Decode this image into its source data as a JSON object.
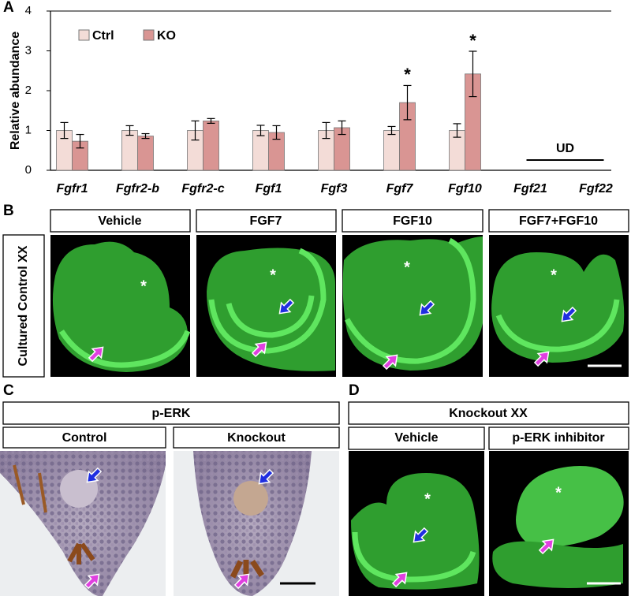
{
  "chart_data": {
    "type": "bar",
    "panel_label": "A",
    "ylabel": "Relative abundance",
    "categories": [
      "Fgfr1",
      "Fgfr2-b",
      "Fgfr2-c",
      "Fgf1",
      "Fgf3",
      "Fgf7",
      "Fgf10",
      "Fgf21",
      "Fgf22"
    ],
    "series": [
      {
        "name": "Ctrl",
        "color": "#f3dcd7",
        "values": [
          1,
          1,
          1,
          1,
          1,
          1,
          1,
          null,
          null
        ],
        "errors": [
          0.2,
          0.12,
          0.24,
          0.13,
          0.2,
          0.1,
          0.17,
          null,
          null
        ]
      },
      {
        "name": "KO",
        "color": "#d99593",
        "values": [
          0.73,
          0.86,
          1.24,
          0.95,
          1.07,
          1.7,
          2.42,
          null,
          null
        ],
        "errors": [
          0.17,
          0.06,
          0.06,
          0.17,
          0.17,
          0.43,
          0.57,
          null,
          null
        ]
      }
    ],
    "ylim": [
      0,
      4
    ],
    "yticks": [
      0,
      1,
      2,
      3,
      4
    ],
    "annotations": [
      {
        "text": "*",
        "category": "Fgf7"
      },
      {
        "text": "*",
        "category": "Fgf10"
      },
      {
        "text": "UD",
        "categories": [
          "Fgf21",
          "Fgf22"
        ]
      }
    ]
  },
  "panel_b": {
    "label": "B",
    "row_label": "Cultured Control XX",
    "columns": [
      "Vehicle",
      "FGF7",
      "FGF10",
      "FGF7+FGF10"
    ],
    "marker": "*"
  },
  "panel_c": {
    "label": "C",
    "title": "p-ERK",
    "columns": [
      "Control",
      "Knockout"
    ]
  },
  "panel_d": {
    "label": "D",
    "title": "Knockout XX",
    "columns": [
      "Vehicle",
      "p-ERK inhibitor"
    ],
    "marker": "*"
  }
}
